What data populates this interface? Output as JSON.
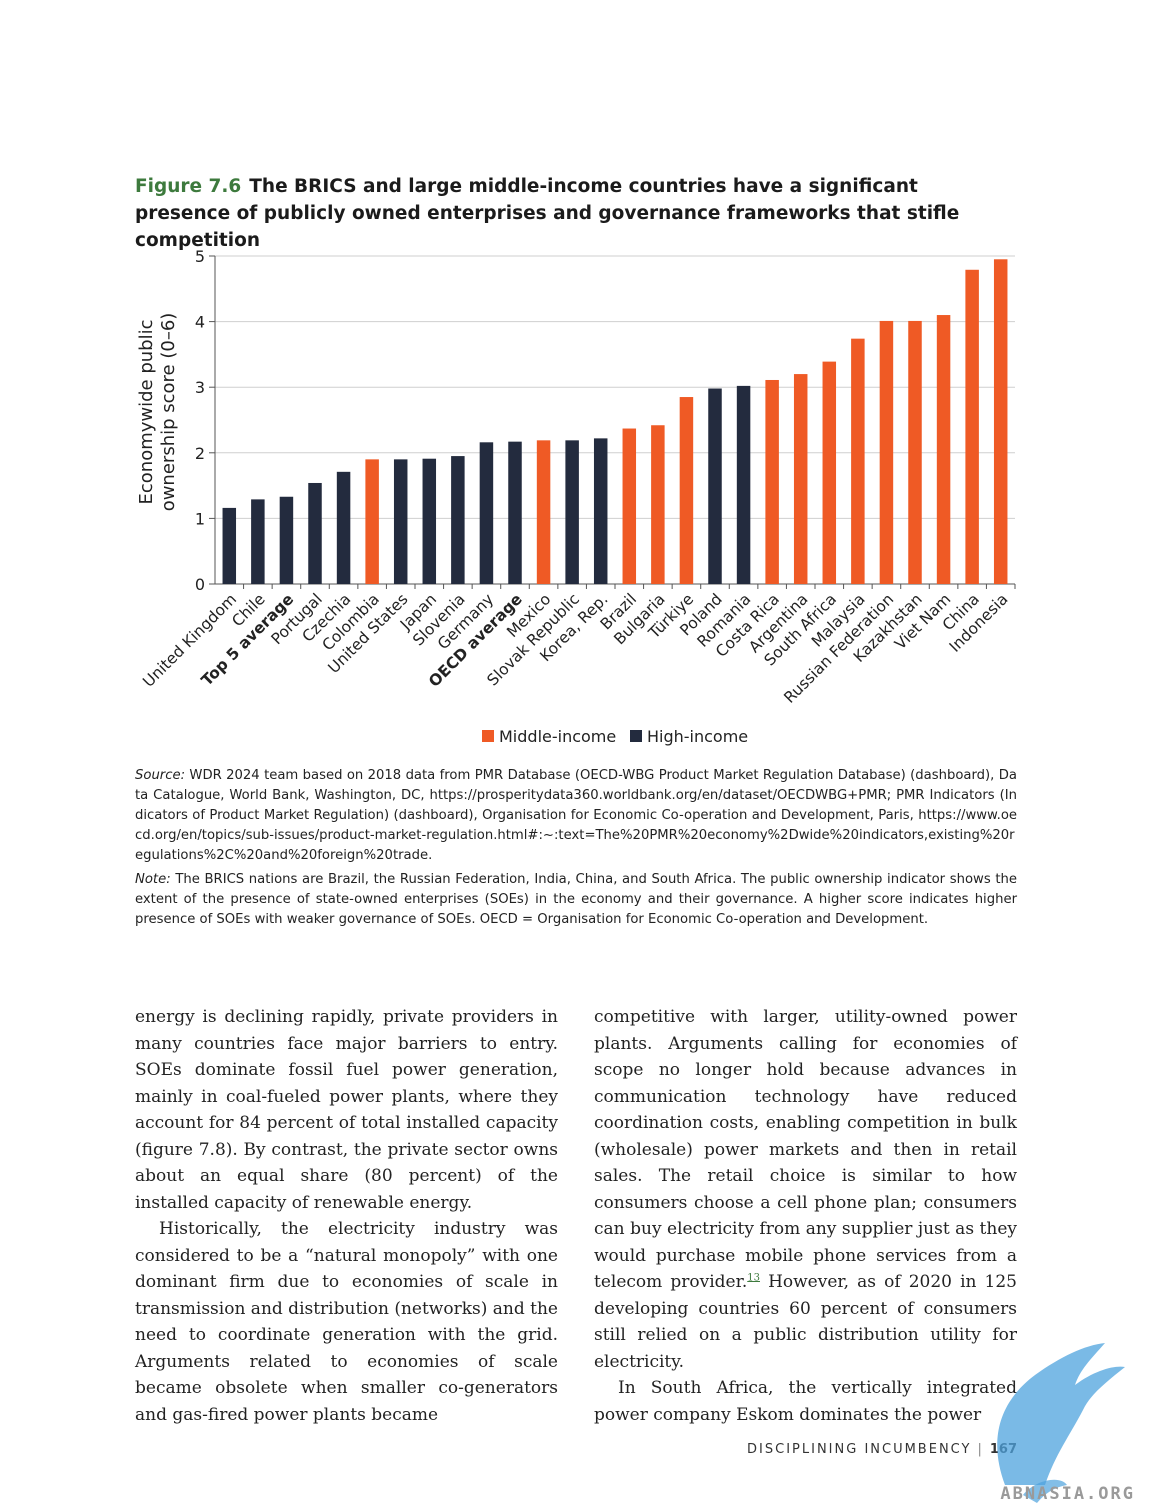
{
  "figure": {
    "number": "Figure 7.6",
    "title": "The BRICS and large middle-income countries have a significant presence of publicly owned enterprises and governance frameworks that stifle competition"
  },
  "chart_data": {
    "type": "bar",
    "ylabel": "Economywide public ownership score (0–6)",
    "ylim": [
      0,
      5
    ],
    "yticks": [
      "0",
      "1",
      "2",
      "3",
      "4",
      "5"
    ],
    "grid": true,
    "legend_position": "bottom-center",
    "colors": {
      "Middle-income": "#ef5a25",
      "High-income": "#232b3e"
    },
    "legend": [
      "Middle-income",
      "High-income"
    ],
    "categories": [
      "United Kingdom",
      "Chile",
      "Top 5 average",
      "Portugal",
      "Czechia",
      "Colombia",
      "United States",
      "Japan",
      "Slovenia",
      "Germany",
      "OECD average",
      "Mexico",
      "Slovak Republic",
      "Korea, Rep.",
      "Brazil",
      "Bulgaria",
      "Türkiye",
      "Poland",
      "Romania",
      "Costa Rica",
      "Argentina",
      "South Africa",
      "Malaysia",
      "Russian Federation",
      "Kazakhstan",
      "Viet Nam",
      "China",
      "Indonesia"
    ],
    "values": [
      1.16,
      1.29,
      1.33,
      1.54,
      1.71,
      1.9,
      1.9,
      1.91,
      1.95,
      2.16,
      2.17,
      2.19,
      2.19,
      2.22,
      2.37,
      2.42,
      2.85,
      2.98,
      3.02,
      3.11,
      3.2,
      3.39,
      3.74,
      4.01,
      4.01,
      4.1,
      4.79,
      4.95
    ],
    "income_group": [
      "High-income",
      "High-income",
      "High-income",
      "High-income",
      "High-income",
      "Middle-income",
      "High-income",
      "High-income",
      "High-income",
      "High-income",
      "High-income",
      "Middle-income",
      "High-income",
      "High-income",
      "Middle-income",
      "Middle-income",
      "Middle-income",
      "High-income",
      "High-income",
      "Middle-income",
      "Middle-income",
      "Middle-income",
      "Middle-income",
      "Middle-income",
      "Middle-income",
      "Middle-income",
      "Middle-income",
      "Middle-income"
    ],
    "bold_categories": [
      "Top 5 average",
      "OECD average"
    ]
  },
  "notes": {
    "source_label": "Source:",
    "source_text": "WDR 2024 team based on 2018 data from PMR Database (OECD-WBG Product Market Regulation Database) (dashboard), Data Catalogue, World Bank, Washington, DC, https://prosperitydata360.worldbank.org/en/dataset/OECDWBG+PMR; PMR Indicators (Indicators of Product Market Regulation) (dashboard), Organisation for Economic Co-operation and Development, Paris, https://www.oecd.org/en/topics/sub-issues/product-market-regulation.html#:~:text=The%20PMR%20economy%2Dwide%20indicators,existing%20regulations%2C%20and%20foreign%20trade.",
    "note_label": "Note:",
    "note_text": "The BRICS nations are Brazil, the Russian Federation, India, China, and South Africa. The public ownership indicator shows the extent of the presence of state-owned enterprises (SOEs) in the economy and their governance. A higher score indicates higher presence of SOEs with weaker governance of SOEs. OECD = Organisation for Economic Co-operation and Development."
  },
  "body": {
    "left_p1": "energy is declining rapidly, private providers in many countries face major barriers to entry. SOEs dominate fossil fuel power generation, mainly in coal-fueled power plants, where they account for 84 percent of total installed capacity (figure 7.8). By contrast, the private sector owns about an equal share (80 percent) of the installed capacity of renewable energy.",
    "left_p2": "Historically, the electricity industry was considered to be a “natural monopoly” with one dominant firm due to economies of scale in transmission and distribution (networks) and the need to coordinate generation with the grid. Arguments related to economies of scale became obsolete when smaller co-generators and gas-fired power plants became",
    "right_p1_a": "competitive with larger, utility-owned power plants. Arguments calling for economies of scope no longer hold because advances in communication technology have reduced coordination costs, enabling competition in bulk (wholesale) power markets and then in retail sales. The retail choice is similar to how consumers choose a cell phone plan; consumers can buy electricity from any supplier just as they would purchase mobile phone services from a telecom provider.",
    "right_p1_ref": "13",
    "right_p1_b": " However, as of 2020 in 125 developing countries 60 percent of consumers still relied on a public distribution utility for electricity.",
    "right_p2": "In South Africa, the vertically integrated power company Eskom dominates the power"
  },
  "footer": {
    "running_head": "DISCIPLINING INCUMBENCY",
    "separator": "|",
    "page_number": "167"
  },
  "watermark": {
    "text": "ABNASIA.ORG",
    "color": "#4da3dd"
  }
}
